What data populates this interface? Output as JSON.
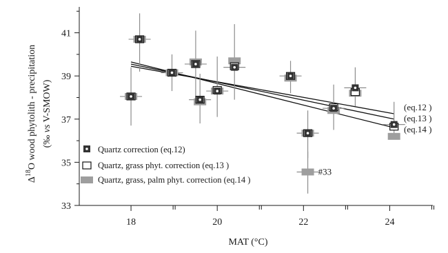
{
  "chart_data": {
    "type": "scatter",
    "xlabel": "MAT (°C)",
    "ylabel_line1_prefix": "Δ",
    "ylabel_line1_sup": "18",
    "ylabel_line1_rest": "O wood phytolith - precipitation",
    "ylabel_line2_a": "(‰ ",
    "ylabel_line2_vs": "vs",
    "ylabel_line2_b": " V-SMOW)",
    "xlim": [
      16.8,
      25.0
    ],
    "ylim": [
      33,
      42.2
    ],
    "x_ticks": [
      18,
      20,
      22,
      24
    ],
    "x_minor_ticks": [
      19,
      21,
      23,
      25
    ],
    "y_ticks": [
      33,
      35,
      37,
      39,
      41
    ],
    "x_tick_labels": [
      "18",
      "20",
      "22",
      "24"
    ],
    "y_tick_labels": [
      "33",
      "35",
      "37",
      "39",
      "41"
    ],
    "colors": {
      "axis": "#1a1a1a",
      "errorbar": "#8c8c8c",
      "series_eq12": "#333333",
      "series_eq13_fill": "#ffffff",
      "series_eq14": "#9e9e9e",
      "regression": "#111111"
    },
    "series": [
      {
        "name": "Quartz correction (eq.12)",
        "marker": "dark-square-with-white-dot",
        "points": [
          {
            "x": 18.0,
            "y": 38.05,
            "ylow": 36.7,
            "yhigh": 39.4
          },
          {
            "x": 18.2,
            "y": 40.7,
            "ylow": 39.2,
            "yhigh": 41.9
          },
          {
            "x": 18.95,
            "y": 39.15,
            "ylow": 38.3,
            "yhigh": 40.0
          },
          {
            "x": 19.5,
            "y": 39.55,
            "ylow": 37.7,
            "yhigh": 41.1
          },
          {
            "x": 19.6,
            "y": 37.9,
            "ylow": 36.8,
            "yhigh": 39.1
          },
          {
            "x": 20.0,
            "y": 38.3,
            "ylow": 37.1,
            "yhigh": 39.9
          },
          {
            "x": 20.4,
            "y": 39.4,
            "ylow": 37.9,
            "yhigh": 41.4
          },
          {
            "x": 21.7,
            "y": 39.0,
            "ylow": 38.2,
            "yhigh": 39.7
          },
          {
            "x": 22.1,
            "y": 36.35,
            "ylow": 35.2,
            "yhigh": 37.4
          },
          {
            "x": 22.7,
            "y": 37.5,
            "ylow": 36.5,
            "yhigh": 38.6
          },
          {
            "x": 23.2,
            "y": 38.45,
            "ylow": 37.6,
            "yhigh": 39.4
          },
          {
            "x": 24.1,
            "y": 36.75,
            "ylow": 36.3,
            "yhigh": 37.8
          }
        ]
      },
      {
        "name": "Quartz, grass phyt. correction (eq.13 )",
        "marker": "open-square",
        "points": [
          {
            "x": 18.0,
            "y": 38.05
          },
          {
            "x": 18.2,
            "y": 40.7
          },
          {
            "x": 18.95,
            "y": 39.15
          },
          {
            "x": 19.5,
            "y": 39.55
          },
          {
            "x": 19.6,
            "y": 37.9
          },
          {
            "x": 20.0,
            "y": 38.35
          },
          {
            "x": 20.4,
            "y": 39.45
          },
          {
            "x": 21.7,
            "y": 39.0
          },
          {
            "x": 22.1,
            "y": 36.35
          },
          {
            "x": 22.7,
            "y": 37.55
          },
          {
            "x": 23.2,
            "y": 38.25
          },
          {
            "x": 24.1,
            "y": 36.65
          }
        ]
      },
      {
        "name": "Quartz, grass, palm  phyt. correction (eq.14 )",
        "marker": "gray-filled-rectangle",
        "points": [
          {
            "x": 18.0,
            "y": 38.05
          },
          {
            "x": 18.2,
            "y": 40.7
          },
          {
            "x": 18.95,
            "y": 39.15
          },
          {
            "x": 19.5,
            "y": 39.65
          },
          {
            "x": 19.6,
            "y": 37.8
          },
          {
            "x": 20.0,
            "y": 38.3
          },
          {
            "x": 20.4,
            "y": 39.7
          },
          {
            "x": 21.7,
            "y": 38.9
          },
          {
            "x": 22.1,
            "y": 36.35
          },
          {
            "x": 22.7,
            "y": 37.4
          },
          {
            "x": 23.2,
            "y": 38.2
          },
          {
            "x": 24.1,
            "y": 36.2
          },
          {
            "x": 22.1,
            "y": 34.55,
            "ylow": 33.55,
            "yhigh": 35.5
          }
        ]
      }
    ],
    "regression_lines": [
      {
        "label": "(eq.12 )",
        "x": [
          18.0,
          24.1
        ],
        "y": [
          39.45,
          37.25
        ]
      },
      {
        "label": "(eq.13 )",
        "x": [
          18.0,
          24.1
        ],
        "y": [
          39.55,
          37.0
        ]
      },
      {
        "label": "(eq.14 )",
        "x": [
          18.0,
          24.1
        ],
        "y": [
          39.65,
          36.6
        ]
      }
    ],
    "annotations": [
      {
        "text": "#33",
        "x": 22.1,
        "y": 34.55
      }
    ],
    "legend_position": "lower-left",
    "grid": false
  }
}
